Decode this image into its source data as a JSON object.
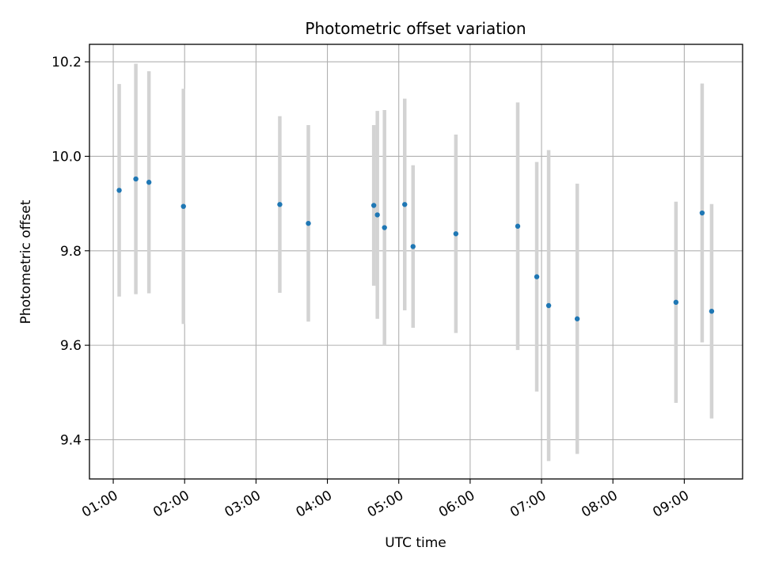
{
  "chart_data": {
    "type": "scatter",
    "title": "Photometric offset variation",
    "xlabel": "UTC time",
    "ylabel": "Photometric offset",
    "x_ticks": [
      "01:00",
      "02:00",
      "03:00",
      "04:00",
      "05:00",
      "06:00",
      "07:00",
      "08:00",
      "09:00"
    ],
    "y_ticks": [
      "9.4",
      "9.6",
      "9.8",
      "10.0",
      "10.2"
    ],
    "xlim": [
      "00:40",
      "09:49"
    ],
    "ylim": [
      9.317,
      10.237
    ],
    "grid": true,
    "colors": {
      "point": "#1f77b4",
      "errorbar": "#d3d3d3",
      "grid": "#b0b0b0"
    },
    "points": [
      {
        "x": "01:05",
        "y": 9.928,
        "low": 9.703,
        "high": 10.153
      },
      {
        "x": "01:19",
        "y": 9.952,
        "low": 9.708,
        "high": 10.196
      },
      {
        "x": "01:30",
        "y": 9.945,
        "low": 9.71,
        "high": 10.18
      },
      {
        "x": "01:59",
        "y": 9.894,
        "low": 9.645,
        "high": 10.143
      },
      {
        "x": "03:20",
        "y": 9.898,
        "low": 9.711,
        "high": 10.085
      },
      {
        "x": "03:44",
        "y": 9.858,
        "low": 9.65,
        "high": 10.066
      },
      {
        "x": "04:39",
        "y": 9.896,
        "low": 9.726,
        "high": 10.066
      },
      {
        "x": "04:42",
        "y": 9.876,
        "low": 9.656,
        "high": 10.096
      },
      {
        "x": "04:48",
        "y": 9.849,
        "low": 9.6,
        "high": 10.098
      },
      {
        "x": "05:05",
        "y": 9.898,
        "low": 9.674,
        "high": 10.122
      },
      {
        "x": "05:12",
        "y": 9.809,
        "low": 9.637,
        "high": 9.981
      },
      {
        "x": "05:48",
        "y": 9.836,
        "low": 9.626,
        "high": 10.046
      },
      {
        "x": "06:40",
        "y": 9.852,
        "low": 9.59,
        "high": 10.114
      },
      {
        "x": "06:56",
        "y": 9.745,
        "low": 9.502,
        "high": 9.988
      },
      {
        "x": "07:06",
        "y": 9.684,
        "low": 9.355,
        "high": 10.013
      },
      {
        "x": "07:30",
        "y": 9.656,
        "low": 9.37,
        "high": 9.942
      },
      {
        "x": "08:53",
        "y": 9.691,
        "low": 9.478,
        "high": 9.904
      },
      {
        "x": "09:15",
        "y": 9.88,
        "low": 9.606,
        "high": 10.154
      },
      {
        "x": "09:23",
        "y": 9.672,
        "low": 9.445,
        "high": 9.899
      }
    ]
  }
}
